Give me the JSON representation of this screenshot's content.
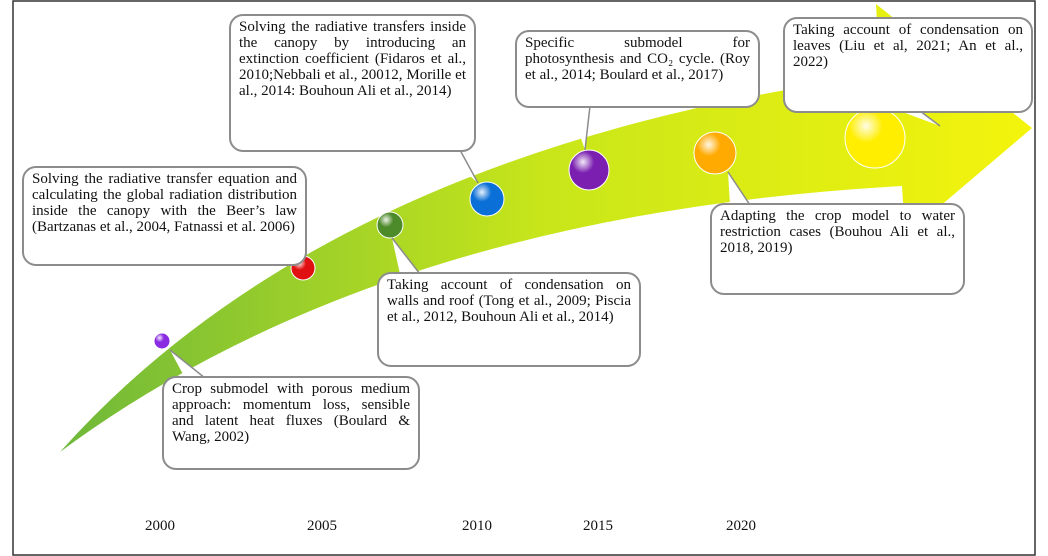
{
  "callouts": [
    {
      "text": "Crop submodel with porous medium approach: momentum loss, sensible and latent heat fluxes (Boulard & Wang, 2002)"
    },
    {
      "text": "Solving the radiative transfer equation and calculating the global radiation distribution inside the canopy with the Beer’s law (Bartzanas et al., 2004, Fatnassi et al. 2006)"
    },
    {
      "text": "Taking account of condensation on walls and roof (Tong et al., 2009; Piscia et al., 2012, Bouhoun Ali et al., 2014)"
    },
    {
      "text": "Solving the radiative transfers inside the canopy by introducing an extinction coefficient (Fidaros et al., 2010;Nebbali et al., 20012, Morille et al., 2014: Bouhoun Ali et al., 2014)"
    },
    {
      "text": "Specific submodel for photosynthesis and CO₂ cycle. (Roy et al., 2014; Boulard et al., 2017)"
    },
    {
      "text": "Adapting the crop model to water restriction cases (Bouhou Ali et al., 2018, 2019)"
    },
    {
      "text": "Taking account of condensation on leaves (Liu et al, 2021; An et al., 2022)"
    }
  ],
  "years": [
    "2000",
    "2005",
    "2010",
    "2015",
    "2020"
  ]
}
